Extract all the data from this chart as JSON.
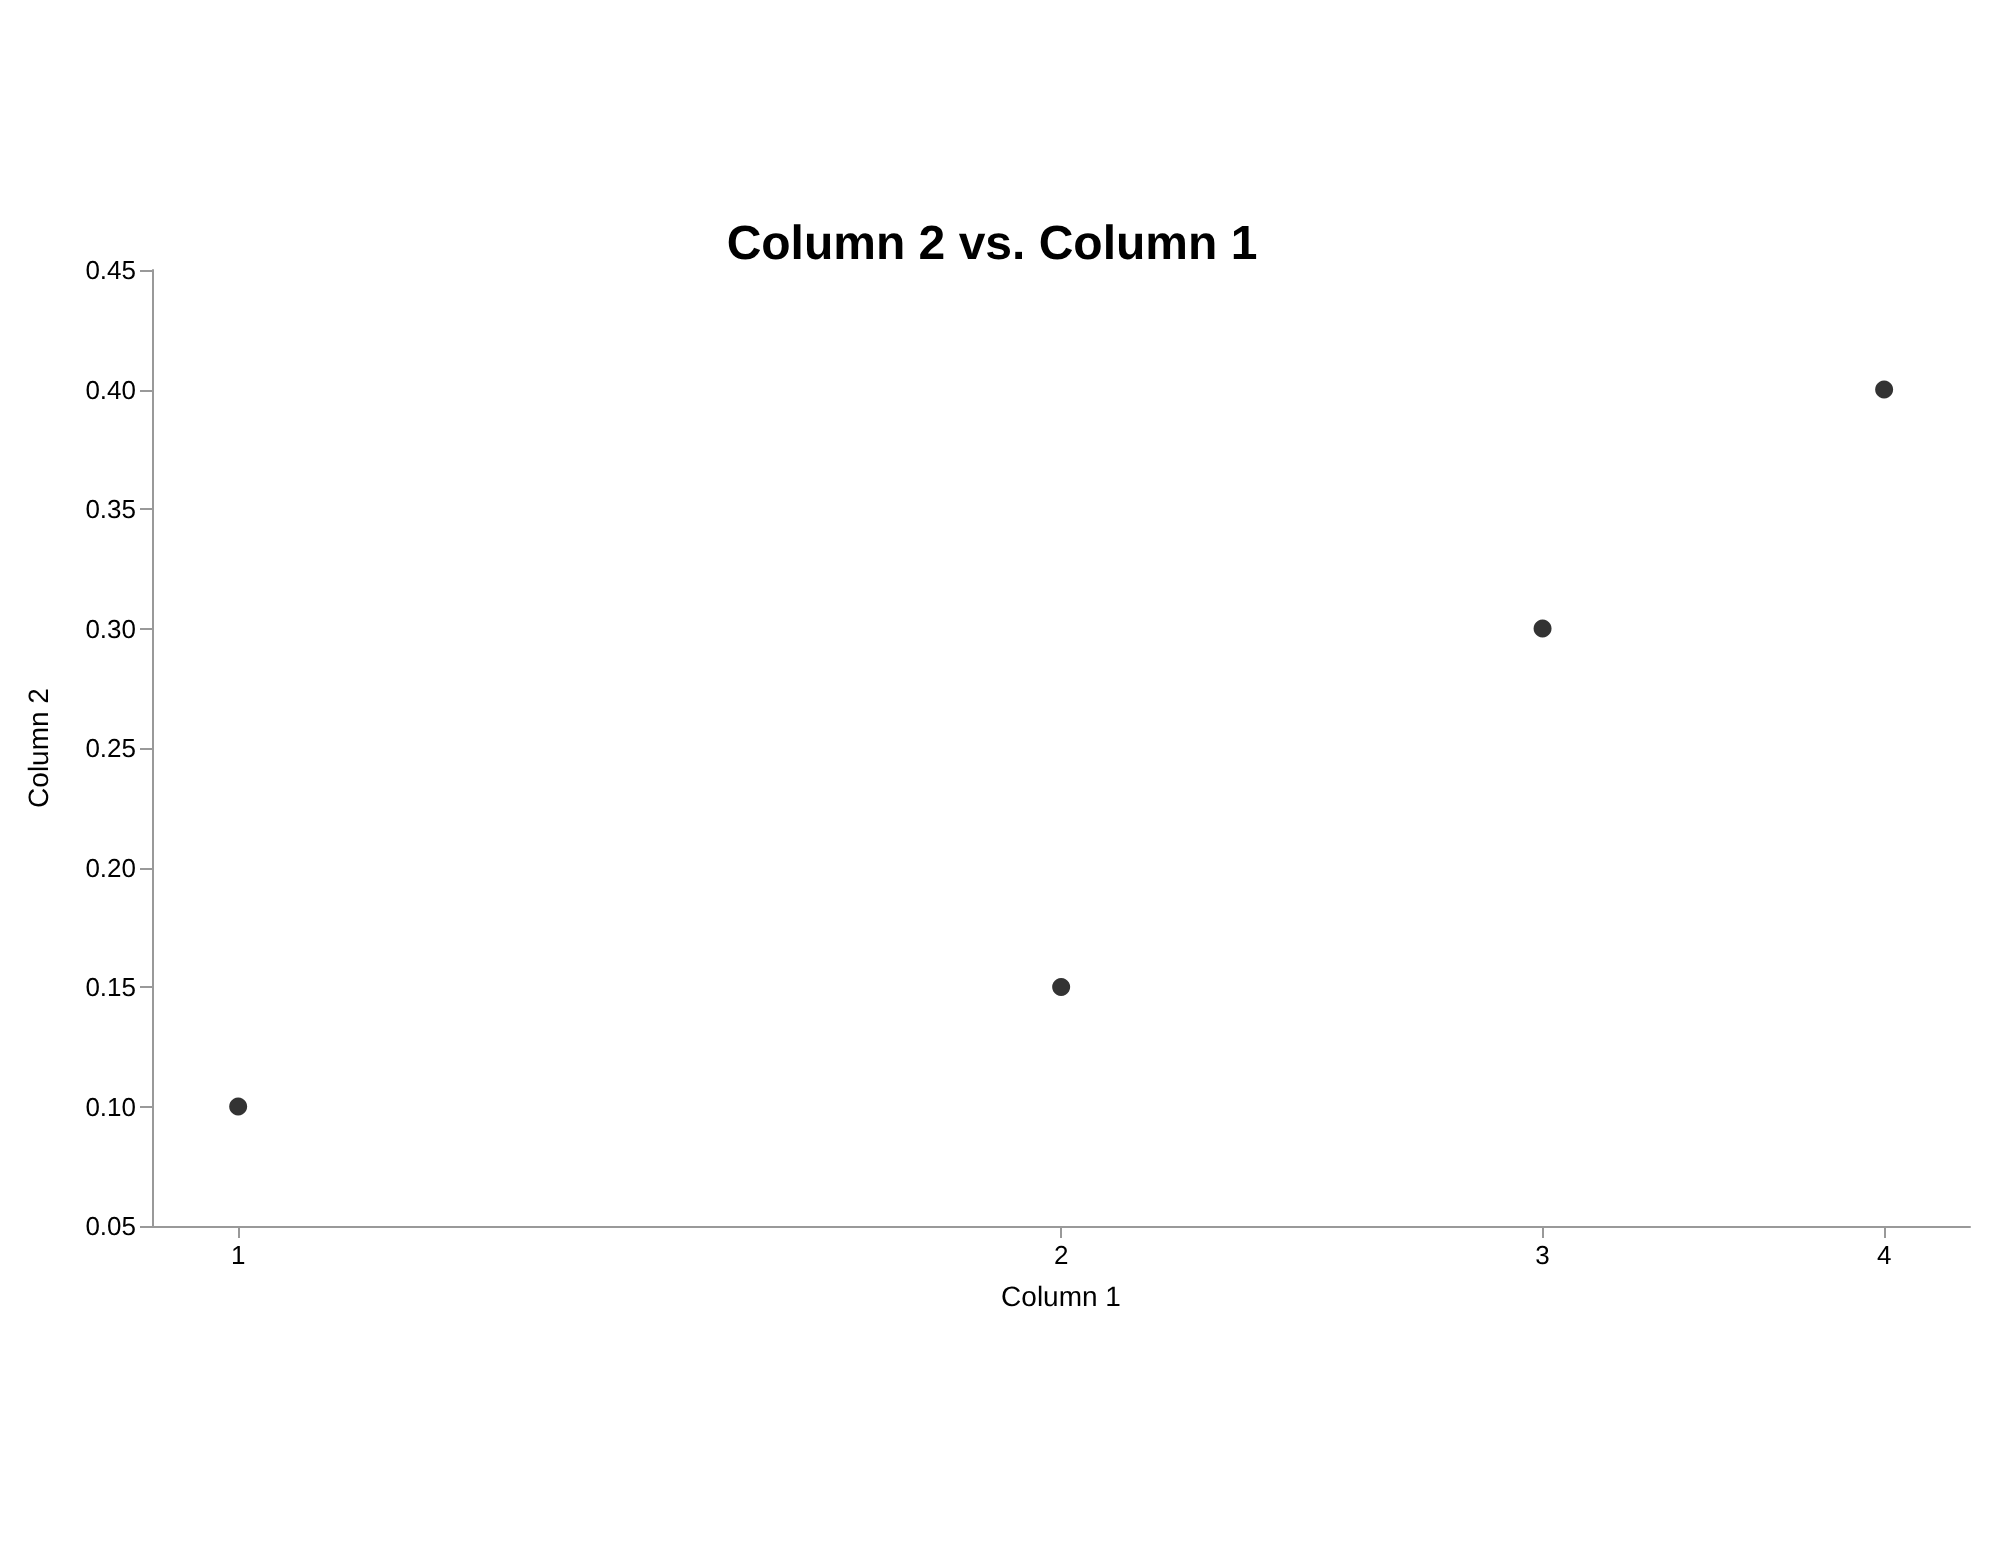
{
  "chart_data": {
    "type": "scatter",
    "title": "Column 2 vs. Column 1",
    "xlabel": "Column 1",
    "ylabel": "Column 2",
    "x": [
      1,
      2,
      3,
      4
    ],
    "values": [
      0.1,
      0.15,
      0.3,
      0.4
    ],
    "color": "#000000",
    "marker": "circle",
    "log": "x",
    "grid": false,
    "xlim": [
      0.93,
      4.3
    ],
    "xticks": [
      1,
      2,
      3,
      4
    ],
    "ylim": [
      0.05,
      0.45
    ],
    "yticks": [
      {
        "value": 0.05,
        "label": "0.05"
      },
      {
        "value": 0.1,
        "label": "0.10"
      },
      {
        "value": 0.15,
        "label": "0.15"
      },
      {
        "value": 0.2,
        "label": "0.20"
      },
      {
        "value": 0.25,
        "label": "0.25"
      },
      {
        "value": 0.3,
        "label": "0.30"
      },
      {
        "value": 0.35,
        "label": "0.35"
      },
      {
        "value": 0.4,
        "label": "0.40"
      },
      {
        "value": 0.45,
        "label": "0.45"
      }
    ]
  }
}
